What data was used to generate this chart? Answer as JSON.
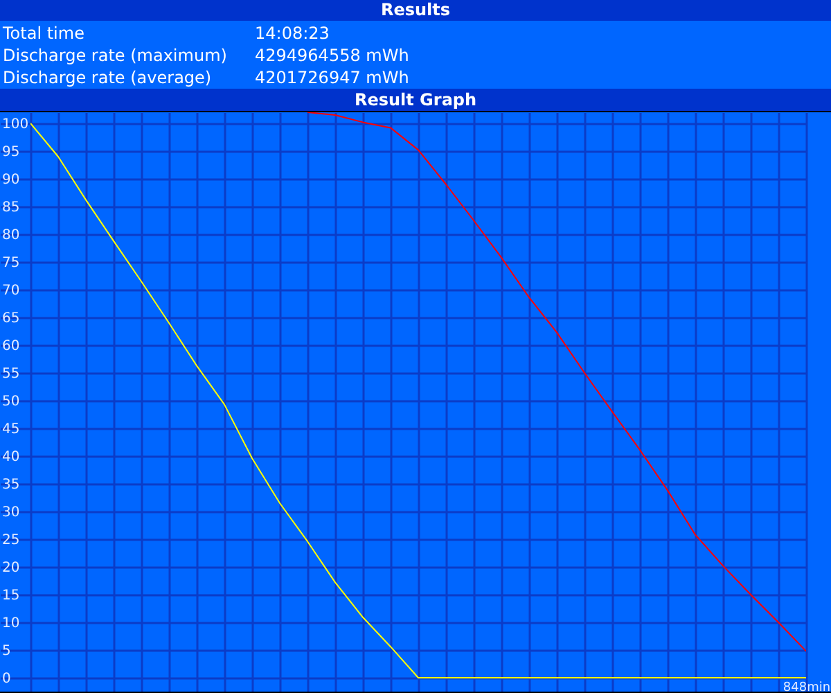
{
  "chart_data": [
    {
      "type": "other",
      "title": "Results",
      "annotations": [
        "Total time",
        "14:08:23",
        "Discharge rate (maximum)",
        "4294964558 mWh",
        "Discharge rate (average)",
        "4201726947 mWh"
      ]
    },
    {
      "type": "line",
      "title": "Result Graph",
      "categories": [
        null,
        null,
        null,
        null,
        null,
        null,
        null,
        null,
        null,
        null,
        null,
        null,
        null,
        null,
        null,
        null,
        null,
        null,
        null,
        null,
        null,
        null,
        null,
        null,
        null,
        null,
        null,
        null,
        "848min"
      ],
      "series": [
        {
          "color": "#ffff00",
          "values": [
            100,
            94,
            86.2,
            78.8,
            71.5,
            64,
            56.3,
            49.3,
            39.6,
            31.5,
            24.6,
            17.2,
            10.9,
            5.6,
            0,
            0,
            0,
            0,
            0,
            0,
            0,
            0,
            0,
            0,
            0,
            0,
            0,
            0,
            0
          ]
        },
        {
          "color": "#ff0000",
          "values": [
            null,
            null,
            null,
            null,
            null,
            null,
            null,
            null,
            null,
            null,
            102,
            101.5,
            100.2,
            99.2,
            95.2,
            89,
            82.5,
            75.8,
            68.6,
            62.3,
            55,
            48,
            41.1,
            33.8,
            25.8,
            20.2,
            15,
            10,
            4.8
          ]
        }
      ],
      "ylim": [
        -2.5,
        102
      ],
      "yticks": [
        0,
        5,
        10,
        15,
        20,
        25,
        30,
        35,
        40,
        45,
        50,
        55,
        60,
        65,
        70,
        75,
        80,
        85,
        90,
        95,
        100
      ],
      "grid": true
    }
  ]
}
